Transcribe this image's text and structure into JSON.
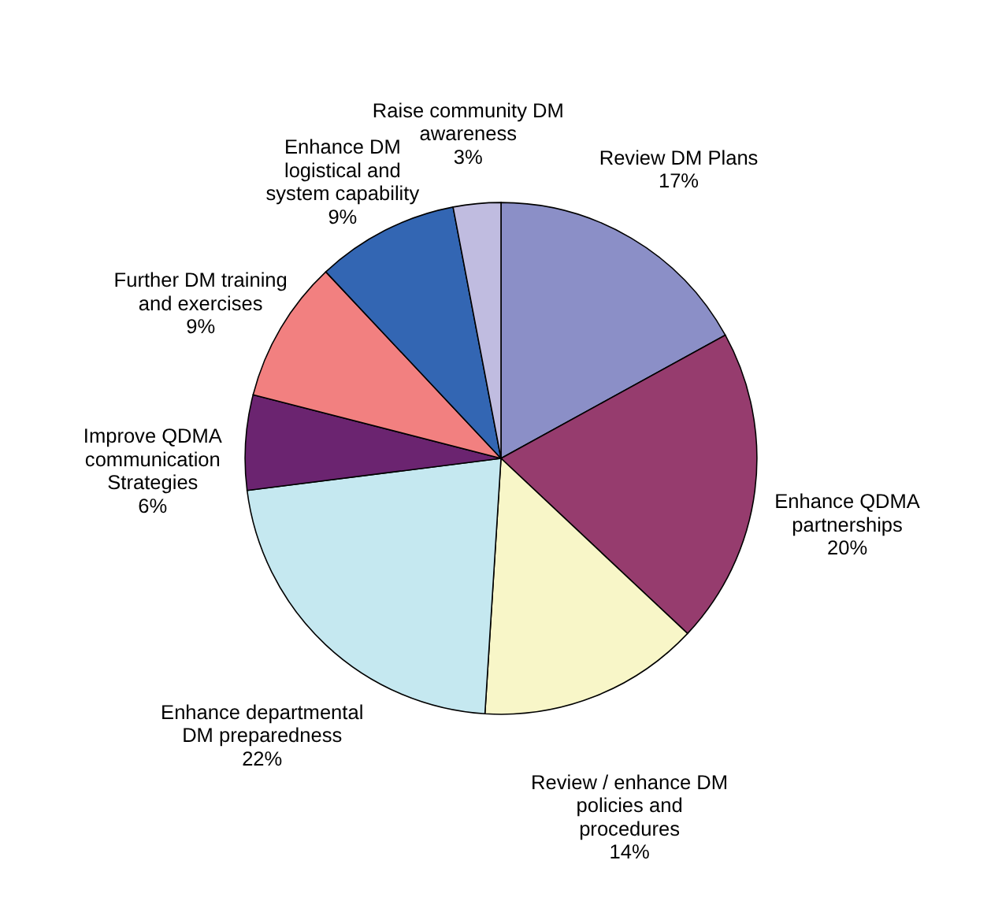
{
  "chart_data": {
    "type": "pie",
    "categories": [
      "Review DM Plans",
      "Enhance QDMA partnerships",
      "Review / enhance DM policies and procedures",
      "Enhance departmental DM preparedness",
      "Improve QDMA communication Strategies",
      "Further DM training and exercises",
      "Enhance DM logistical and system capability",
      "Raise community DM awareness"
    ],
    "values": [
      17,
      20,
      14,
      22,
      6,
      9,
      9,
      3
    ],
    "colors": [
      "#8b8fc7",
      "#963c6e",
      "#f8f6c8",
      "#c5e8f0",
      "#6b2470",
      "#f28080",
      "#3366b3",
      "#c0bce0"
    ],
    "value_labels": [
      "17%",
      "20%",
      "14%",
      "22%",
      "6%",
      "9%",
      "9%",
      "3%"
    ]
  }
}
